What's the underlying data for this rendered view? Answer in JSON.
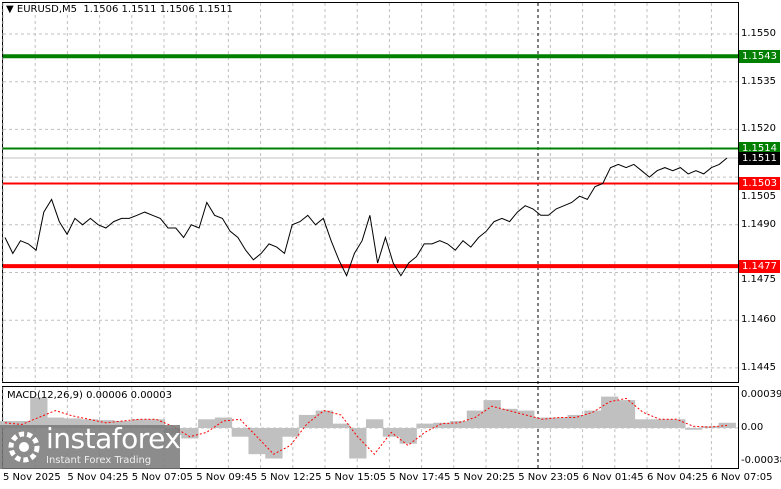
{
  "header": {
    "symbol": "EURUSD,M5",
    "ohlc": "1.1506 1.1511 1.1506 1.1511"
  },
  "price_axis": {
    "ticks": [
      "1.1550",
      "1.1535",
      "1.1520",
      "1.1490",
      "1.1475",
      "1.1460",
      "1.1445"
    ],
    "partial_tick": "1.1505"
  },
  "levels": [
    {
      "value": "1.1543",
      "color": "#008000"
    },
    {
      "value": "1.1514",
      "color": "#008000"
    },
    {
      "value": "1.1511",
      "color": "#000000"
    },
    {
      "value": "1.1503",
      "color": "#ff0000"
    },
    {
      "value": "1.1477",
      "color": "#ff0000"
    }
  ],
  "time_axis": [
    "5 Nov 2025",
    "5 Nov 04:25",
    "5 Nov 07:05",
    "5 Nov 09:45",
    "5 Nov 12:25",
    "5 Nov 15:05",
    "5 Nov 17:45",
    "5 Nov 20:25",
    "5 Nov 23:05",
    "6 Nov 01:45",
    "6 Nov 04:25",
    "6 Nov 07:05"
  ],
  "macd": {
    "title": "MACD(12,26,9) 0.00006 0.00003",
    "ticks": [
      "0.00039",
      "0.00",
      "-0.00038"
    ]
  },
  "logo": {
    "brand": "instaforex",
    "tagline": "Instant Forex Trading"
  },
  "chart_data": {
    "type": "line",
    "ylim": [
      1.144,
      1.156
    ],
    "price": [
      1.1486,
      1.1481,
      1.1485,
      1.1484,
      1.1482,
      1.1494,
      1.1498,
      1.1491,
      1.1487,
      1.1492,
      1.149,
      1.1492,
      1.149,
      1.1489,
      1.1491,
      1.1492,
      1.1492,
      1.1493,
      1.1494,
      1.1493,
      1.1492,
      1.1489,
      1.1489,
      1.1486,
      1.149,
      1.1489,
      1.1497,
      1.1493,
      1.1492,
      1.1488,
      1.1486,
      1.1482,
      1.1479,
      1.1481,
      1.1484,
      1.1483,
      1.1481,
      1.149,
      1.1491,
      1.1493,
      1.149,
      1.1492,
      1.1485,
      1.1479,
      1.1474,
      1.1481,
      1.1485,
      1.1493,
      1.1478,
      1.1486,
      1.1478,
      1.1474,
      1.1478,
      1.148,
      1.1484,
      1.1484,
      1.1485,
      1.1484,
      1.1482,
      1.1485,
      1.1483,
      1.1486,
      1.1488,
      1.1491,
      1.1492,
      1.1491,
      1.1494,
      1.1496,
      1.1495,
      1.1493,
      1.1493,
      1.1495,
      1.1496,
      1.1497,
      1.1499,
      1.1498,
      1.1502,
      1.1503,
      1.1508,
      1.1509,
      1.1508,
      1.1509,
      1.1507,
      1.1505,
      1.1507,
      1.1508,
      1.1507,
      1.1508,
      1.1506,
      1.1507,
      1.1506,
      1.1508,
      1.1509,
      1.1511
    ],
    "macd_hist": [
      8e-05,
      8e-05,
      0.00035,
      0.00012,
      0.00011,
      0.0001,
      9e-05,
      8e-05,
      0.0001,
      0.0001,
      -8e-05,
      -0.00012,
      0.0001,
      0.00012,
      -0.0001,
      -0.0003,
      -0.00035,
      -0.0001,
      0.00015,
      0.0002,
      5e-05,
      -0.00035,
      0.0001,
      -0.0001,
      -0.00018,
      5e-05,
      6e-05,
      8e-05,
      0.0002,
      0.00032,
      0.00022,
      0.0002,
      0.00012,
      0.00012,
      0.00015,
      0.0002,
      0.00036,
      0.00032,
      0.0001,
      0.0001,
      0.0001,
      -2e-05,
      2e-05,
      6e-05
    ],
    "macd_signal": [
      6e-05,
      4e-05,
      0.00012,
      0.0002,
      0.00014,
      0.0001,
      6e-05,
      8e-05,
      0.0001,
      0.0001,
      2e-05,
      -0.0001,
      -5e-05,
      8e-05,
      0.0001,
      -0.0001,
      -0.0003,
      -0.0002,
      5e-05,
      0.0002,
      0.00015,
      -0.0001,
      -0.0003,
      -5e-05,
      -0.0002,
      -5e-05,
      5e-05,
      6e-05,
      0.00012,
      0.00025,
      0.0002,
      0.00015,
      0.0001,
      0.00012,
      0.00012,
      0.00018,
      0.0003,
      0.00034,
      0.00018,
      0.0001,
      0.0001,
      2e-05,
      1e-05,
      3e-05
    ]
  }
}
